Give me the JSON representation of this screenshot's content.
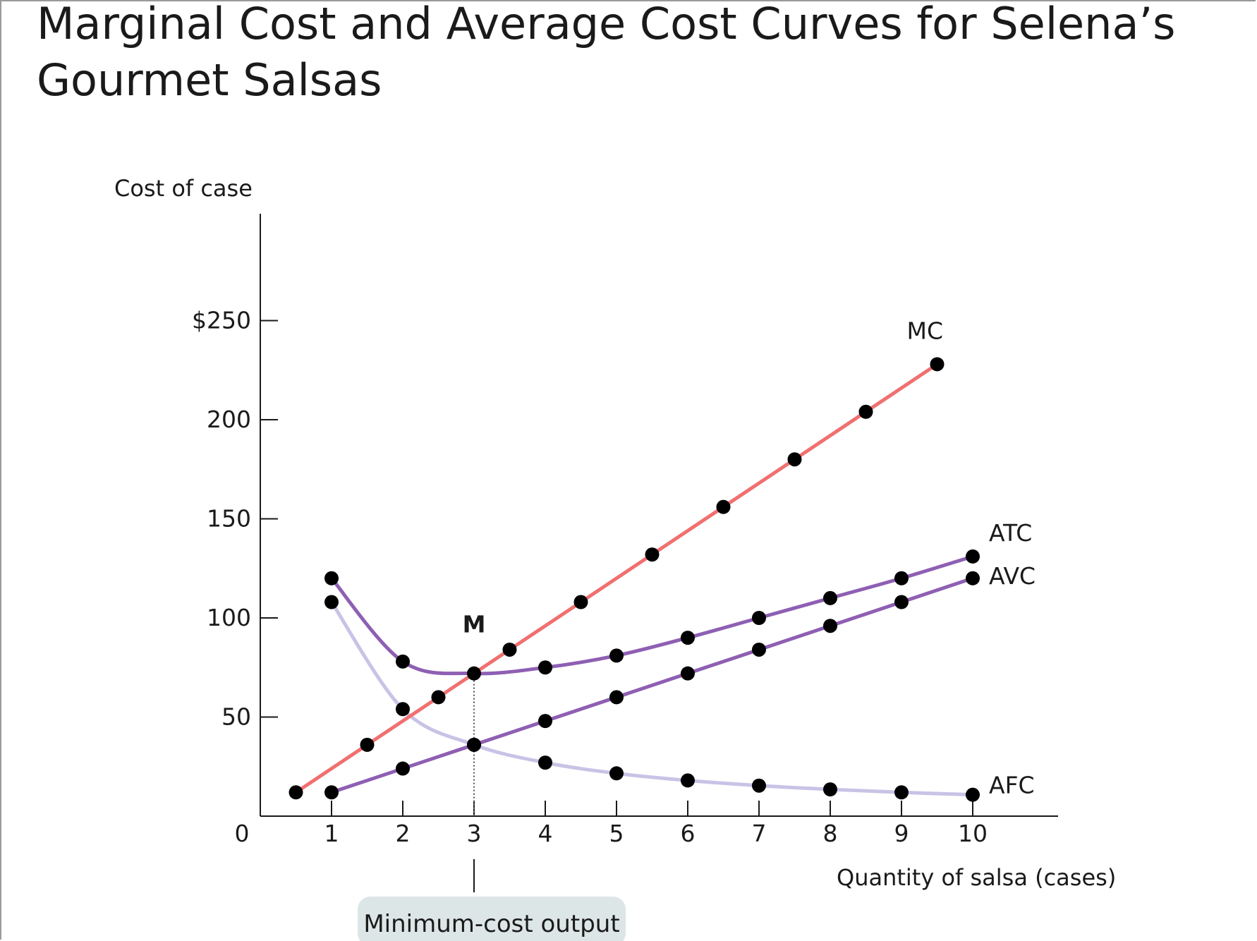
{
  "title": "Marginal Cost and Average Cost Curves for Selena’s Gourmet Salsas",
  "chart_data": {
    "type": "line",
    "ylabel": "Cost of case",
    "xlabel": "Quantity of salsa (cases)",
    "xlim": [
      0,
      10
    ],
    "ylim": [
      0,
      250
    ],
    "x_ticks": [
      "0",
      "1",
      "2",
      "3",
      "4",
      "5",
      "6",
      "7",
      "8",
      "9",
      "10"
    ],
    "y_ticks": [
      {
        "value": 250,
        "label": "$250"
      },
      {
        "value": 200,
        "label": "200"
      },
      {
        "value": 150,
        "label": "150"
      },
      {
        "value": 100,
        "label": "100"
      },
      {
        "value": 50,
        "label": "50"
      }
    ],
    "grid": false,
    "series": [
      {
        "name": "MC",
        "color": "#f07070",
        "style": "line",
        "points": [
          [
            0.5,
            12
          ],
          [
            1.5,
            36
          ],
          [
            2.5,
            60
          ],
          [
            3.5,
            84
          ],
          [
            4.5,
            108
          ],
          [
            5.5,
            132
          ],
          [
            6.5,
            156
          ],
          [
            7.5,
            180
          ],
          [
            8.5,
            204
          ],
          [
            9.5,
            228
          ]
        ]
      },
      {
        "name": "ATC",
        "color": "#8e5fb3",
        "style": "smooth",
        "points": [
          [
            1,
            120
          ],
          [
            2,
            78
          ],
          [
            3,
            72
          ],
          [
            4,
            75
          ],
          [
            5,
            81
          ],
          [
            6,
            90
          ],
          [
            7,
            100
          ],
          [
            8,
            110
          ],
          [
            9,
            120
          ],
          [
            10,
            131
          ]
        ]
      },
      {
        "name": "AVC",
        "color": "#8e5fb3",
        "style": "line",
        "points": [
          [
            1,
            12
          ],
          [
            2,
            24
          ],
          [
            3,
            36
          ],
          [
            4,
            48
          ],
          [
            5,
            60
          ],
          [
            6,
            72
          ],
          [
            7,
            84
          ],
          [
            8,
            96
          ],
          [
            9,
            108
          ],
          [
            10,
            120
          ]
        ]
      },
      {
        "name": "AFC",
        "color": "#c8c3e6",
        "style": "smooth",
        "points": [
          [
            1,
            108
          ],
          [
            2,
            54
          ],
          [
            3,
            36
          ],
          [
            4,
            27
          ],
          [
            5,
            21.6
          ],
          [
            6,
            18
          ],
          [
            7,
            15.4
          ],
          [
            8,
            13.5
          ],
          [
            9,
            12
          ],
          [
            10,
            10.8
          ]
        ]
      }
    ],
    "annotations": {
      "minimum_point_label": "M",
      "minimum_point": [
        3,
        72
      ],
      "minimum_cost_output": 3,
      "minimum_cost_label": "Minimum-cost output"
    }
  }
}
